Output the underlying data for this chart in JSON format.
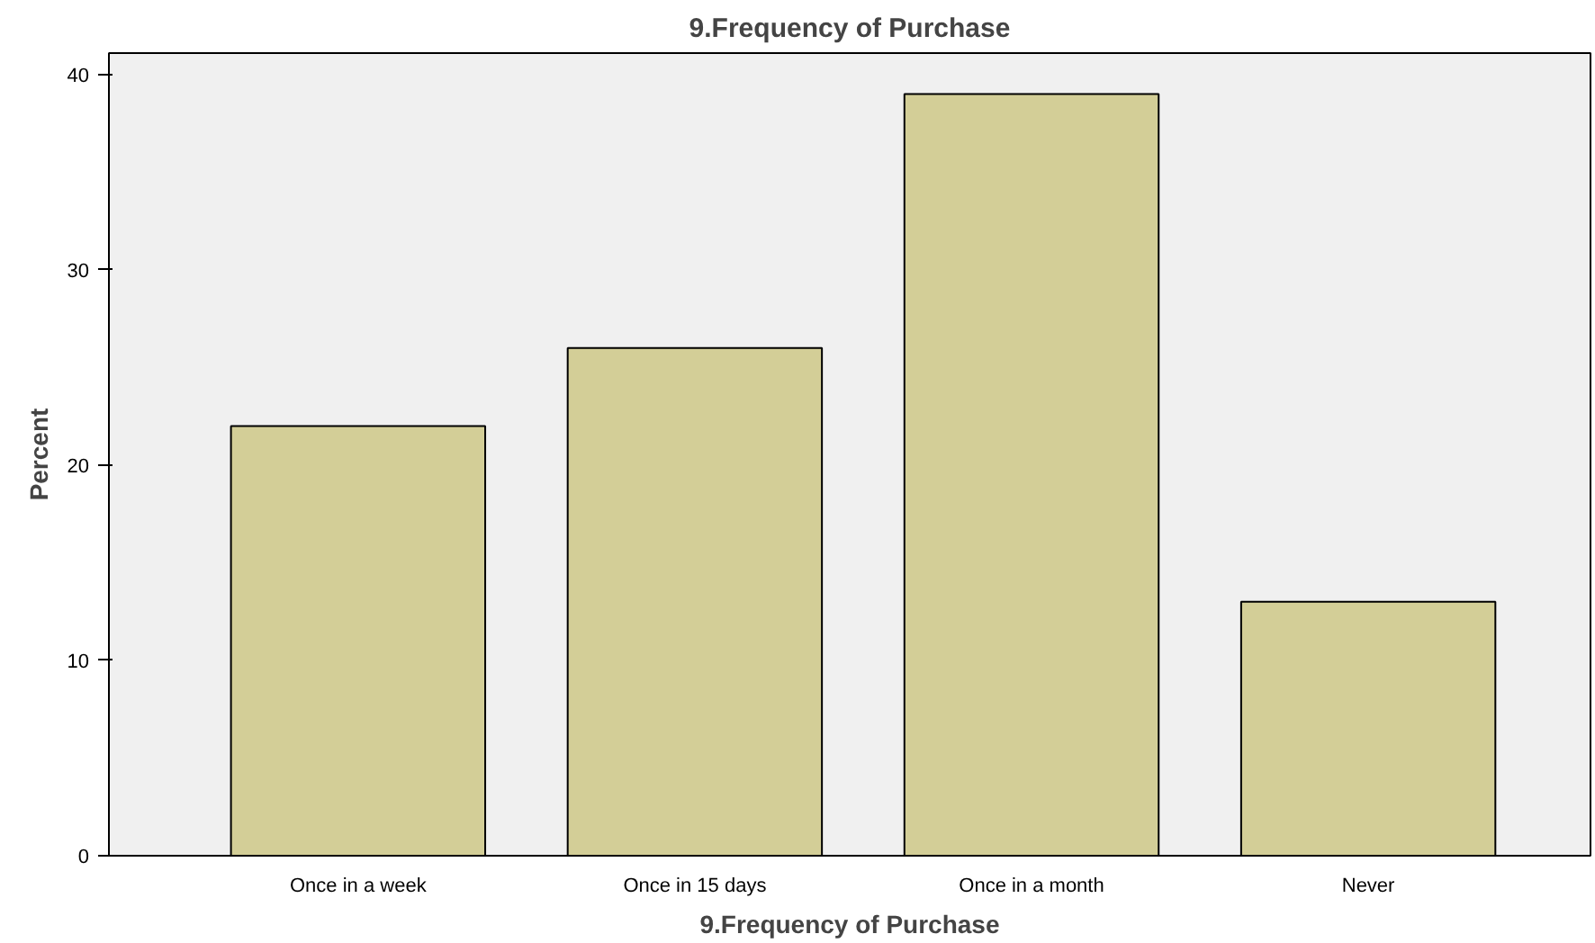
{
  "chart_data": {
    "type": "bar",
    "title": "9.Frequency of Purchase",
    "xlabel": "9.Frequency of Purchase",
    "ylabel": "Percent",
    "categories": [
      "Once in a week",
      "Once in 15 days",
      "Once in a month",
      "Never"
    ],
    "values": [
      22,
      26,
      39,
      13
    ],
    "color": "#d3ce97",
    "ylim": [
      0,
      41.1
    ],
    "yticks": [
      0,
      10,
      20,
      30,
      40
    ],
    "grid": false
  }
}
